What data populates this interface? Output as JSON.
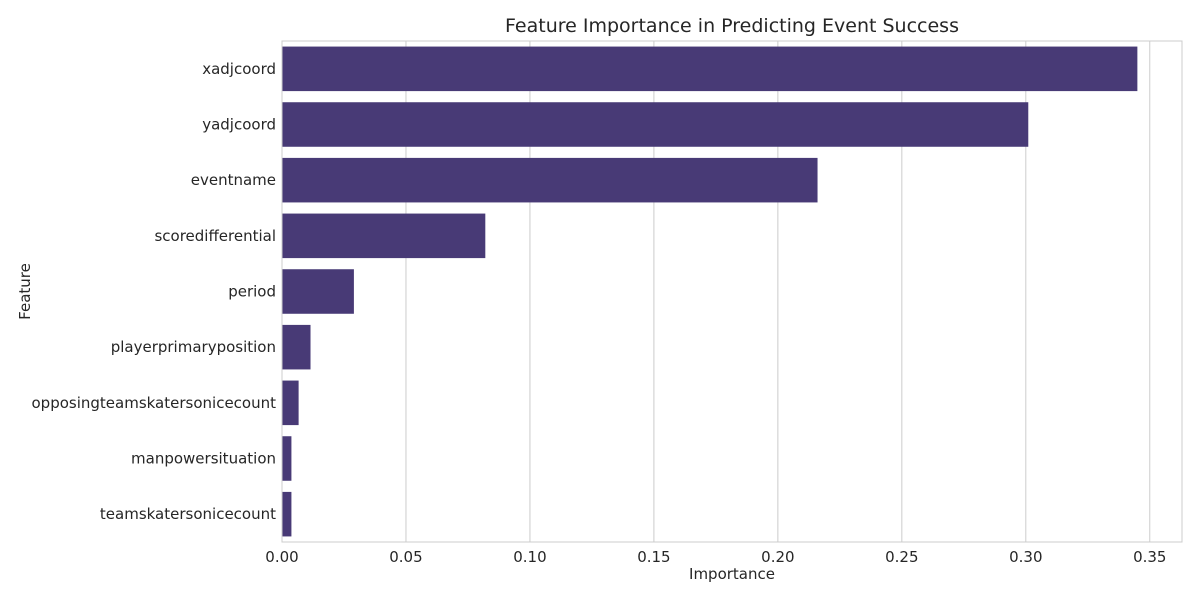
{
  "chart_data": {
    "type": "bar",
    "orientation": "horizontal",
    "title": "Feature Importance in Predicting Event Success",
    "xlabel": "Importance",
    "ylabel": "Feature",
    "categories": [
      "xadjcoord",
      "yadjcoord",
      "eventname",
      "scoredifferential",
      "period",
      "playerprimaryposition",
      "opposingteamskatersonicecount",
      "manpowersituation",
      "teamskatersonicecount"
    ],
    "values": [
      0.345,
      0.301,
      0.216,
      0.082,
      0.029,
      0.0115,
      0.0067,
      0.0038,
      0.0038
    ],
    "xlim": [
      0,
      0.363
    ],
    "xticks": [
      0.0,
      0.05,
      0.1,
      0.15,
      0.2,
      0.25,
      0.3,
      0.35
    ],
    "xtick_labels": [
      "0.00",
      "0.05",
      "0.10",
      "0.15",
      "0.20",
      "0.25",
      "0.30",
      "0.35"
    ],
    "grid": true,
    "bar_color": "#483a76"
  }
}
